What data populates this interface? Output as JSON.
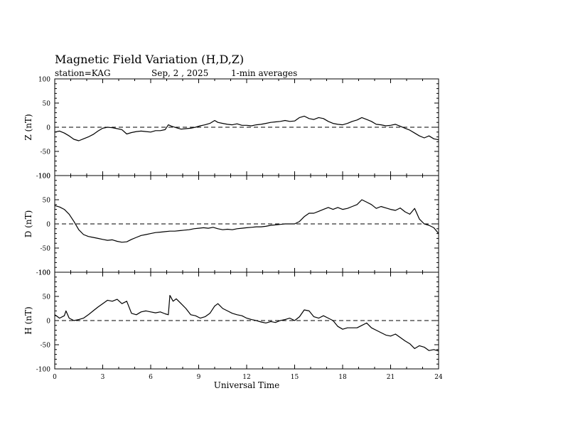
{
  "title": "Magnetic Field Variation (H,D,Z)",
  "subtitle": {
    "station": "station=KAG",
    "date": "Sep, 2  , 2025",
    "averaging": "1-min averages"
  },
  "colors": {
    "line": "#000000",
    "background": "#ffffff"
  },
  "chart_data": [
    {
      "type": "line",
      "panel": "Z",
      "ylabel": "Z (nT)",
      "ylim": [
        -100,
        100
      ],
      "yticks": [
        "100",
        "50",
        "0",
        "-50",
        "-100"
      ],
      "xlim": [
        0,
        24
      ],
      "reference_line": 0,
      "series": [
        {
          "x": [
            0,
            0.3,
            0.6,
            0.9,
            1.2,
            1.5,
            1.8,
            2.1,
            2.4,
            2.7,
            3.0,
            3.3,
            3.6,
            3.9,
            4.2,
            4.5,
            4.8,
            5.1,
            5.4,
            5.7,
            6.0,
            6.3,
            6.6,
            6.9,
            7.1,
            7.3,
            7.6,
            7.9,
            8.2,
            8.5,
            8.8,
            9.1,
            9.4,
            9.7,
            10.0,
            10.2,
            10.5,
            10.8,
            11.1,
            11.4,
            11.7,
            12.0,
            12.3,
            12.6,
            12.9,
            13.2,
            13.5,
            13.8,
            14.1,
            14.4,
            14.7,
            15.0,
            15.3,
            15.6,
            15.9,
            16.2,
            16.5,
            16.8,
            17.1,
            17.4,
            17.7,
            18.0,
            18.3,
            18.6,
            18.9,
            19.2,
            19.5,
            19.8,
            20.1,
            20.4,
            20.7,
            21.0,
            21.3,
            21.6,
            21.9,
            22.2,
            22.5,
            22.8,
            23.1,
            23.4,
            23.7,
            24.0
          ],
          "values": [
            -10,
            -8,
            -12,
            -18,
            -25,
            -28,
            -24,
            -20,
            -15,
            -8,
            -2,
            0,
            -1,
            -3,
            -5,
            -14,
            -11,
            -9,
            -8,
            -9,
            -10,
            -7,
            -7,
            -5,
            5,
            2,
            -1,
            -4,
            -3,
            -2,
            0,
            3,
            5,
            8,
            14,
            10,
            8,
            6,
            5,
            7,
            4,
            4,
            3,
            5,
            6,
            8,
            10,
            11,
            12,
            14,
            12,
            13,
            20,
            23,
            18,
            16,
            20,
            18,
            12,
            8,
            6,
            5,
            8,
            12,
            15,
            20,
            16,
            12,
            6,
            5,
            3,
            4,
            6,
            2,
            -2,
            -6,
            -12,
            -18,
            -22,
            -18,
            -24,
            -26
          ]
        }
      ]
    },
    {
      "type": "line",
      "panel": "D",
      "ylabel": "D (nT)",
      "ylim": [
        -100,
        100
      ],
      "yticks": [
        "100",
        "50",
        "0",
        "-50",
        "-100"
      ],
      "xlim": [
        0,
        24
      ],
      "reference_line": 0,
      "series": [
        {
          "x": [
            0,
            0.3,
            0.6,
            0.9,
            1.2,
            1.5,
            1.8,
            2.1,
            2.4,
            2.7,
            3.0,
            3.3,
            3.6,
            3.9,
            4.2,
            4.5,
            4.8,
            5.1,
            5.4,
            5.7,
            6.0,
            6.3,
            6.6,
            6.9,
            7.2,
            7.5,
            7.8,
            8.1,
            8.4,
            8.7,
            9.0,
            9.3,
            9.6,
            9.9,
            10.2,
            10.5,
            10.8,
            11.1,
            11.4,
            11.7,
            12.0,
            12.3,
            12.6,
            12.9,
            13.2,
            13.5,
            13.8,
            14.1,
            14.4,
            14.7,
            15.0,
            15.3,
            15.6,
            15.9,
            16.2,
            16.5,
            16.8,
            17.1,
            17.4,
            17.7,
            18.0,
            18.3,
            18.6,
            18.9,
            19.2,
            19.5,
            19.8,
            20.1,
            20.4,
            20.7,
            21.0,
            21.3,
            21.6,
            21.9,
            22.2,
            22.5,
            22.8,
            23.1,
            23.4,
            23.7,
            24.0
          ],
          "values": [
            38,
            35,
            30,
            20,
            5,
            -12,
            -22,
            -26,
            -28,
            -30,
            -32,
            -34,
            -33,
            -36,
            -38,
            -37,
            -32,
            -28,
            -24,
            -22,
            -20,
            -18,
            -17,
            -16,
            -15,
            -15,
            -14,
            -13,
            -12,
            -10,
            -9,
            -8,
            -9,
            -7,
            -10,
            -12,
            -11,
            -12,
            -10,
            -9,
            -8,
            -7,
            -6,
            -6,
            -5,
            -3,
            -2,
            -1,
            0,
            0,
            0,
            5,
            15,
            22,
            22,
            26,
            30,
            34,
            30,
            34,
            30,
            32,
            36,
            40,
            50,
            45,
            40,
            32,
            36,
            33,
            30,
            28,
            33,
            25,
            20,
            32,
            10,
            0,
            -3,
            -8,
            -20
          ]
        }
      ]
    },
    {
      "type": "line",
      "panel": "H",
      "ylabel": "H (nT)",
      "ylim": [
        -100,
        100
      ],
      "yticks": [
        "100",
        "50",
        "0",
        "-50",
        "-100"
      ],
      "xlim": [
        0,
        24
      ],
      "xticks": [
        "0",
        "3",
        "6",
        "9",
        "12",
        "15",
        "18",
        "21",
        "24"
      ],
      "xlabel": "Universal Time",
      "reference_line": 0,
      "series": [
        {
          "x": [
            0,
            0.3,
            0.6,
            0.7,
            0.9,
            1.2,
            1.5,
            1.8,
            2.1,
            2.4,
            2.7,
            3.0,
            3.3,
            3.6,
            3.9,
            4.2,
            4.5,
            4.8,
            5.1,
            5.4,
            5.7,
            6.0,
            6.3,
            6.6,
            6.9,
            7.1,
            7.2,
            7.4,
            7.6,
            7.9,
            8.2,
            8.5,
            8.8,
            9.1,
            9.4,
            9.7,
            10.0,
            10.2,
            10.5,
            10.8,
            11.1,
            11.4,
            11.7,
            12.0,
            12.3,
            12.6,
            12.9,
            13.2,
            13.5,
            13.8,
            14.1,
            14.4,
            14.7,
            15.0,
            15.3,
            15.6,
            15.9,
            16.2,
            16.5,
            16.8,
            17.1,
            17.4,
            17.7,
            18.0,
            18.3,
            18.6,
            18.9,
            19.2,
            19.5,
            19.8,
            20.1,
            20.4,
            20.7,
            21.0,
            21.3,
            21.6,
            21.9,
            22.2,
            22.5,
            22.8,
            23.1,
            23.4,
            23.7,
            24.0
          ],
          "values": [
            12,
            5,
            10,
            20,
            5,
            0,
            2,
            5,
            12,
            20,
            28,
            35,
            42,
            40,
            44,
            35,
            40,
            15,
            12,
            18,
            20,
            18,
            16,
            18,
            14,
            12,
            52,
            40,
            45,
            35,
            25,
            12,
            10,
            5,
            8,
            15,
            30,
            35,
            25,
            20,
            15,
            12,
            10,
            5,
            2,
            0,
            -3,
            -5,
            -2,
            -4,
            0,
            2,
            5,
            0,
            8,
            22,
            20,
            8,
            5,
            10,
            5,
            0,
            -12,
            -18,
            -15,
            -15,
            -15,
            -10,
            -5,
            -15,
            -20,
            -25,
            -30,
            -32,
            -28,
            -35,
            -42,
            -48,
            -58,
            -52,
            -55,
            -62,
            -60,
            -63
          ]
        }
      ]
    }
  ]
}
